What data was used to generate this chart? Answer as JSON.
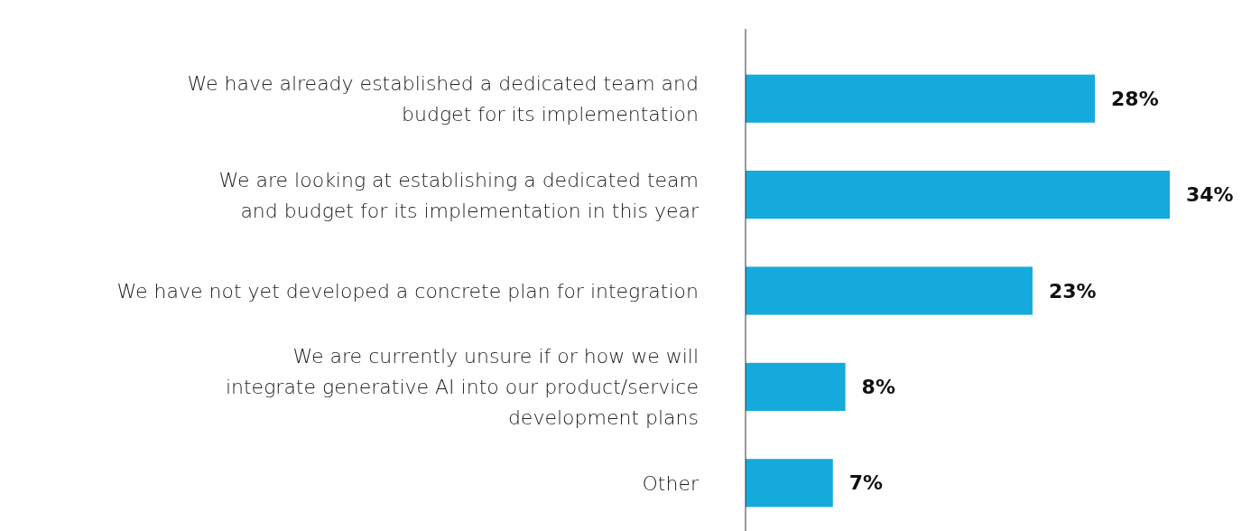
{
  "chart_data": {
    "type": "bar",
    "orientation": "horizontal",
    "categories": [
      "We have already established a dedicated team and budget for its implementation",
      "We are looking at establishing a dedicated team and budget for its implementation in this year",
      "We have not yet developed a concrete plan for integration",
      "We are currently unsure if or how we will integrate generative AI into our product/service development plans",
      "Other"
    ],
    "values": [
      28,
      34,
      23,
      8,
      7
    ],
    "value_labels": [
      "28%",
      "34%",
      "23%",
      "8%",
      "7%"
    ],
    "color": "#15aadc"
  }
}
